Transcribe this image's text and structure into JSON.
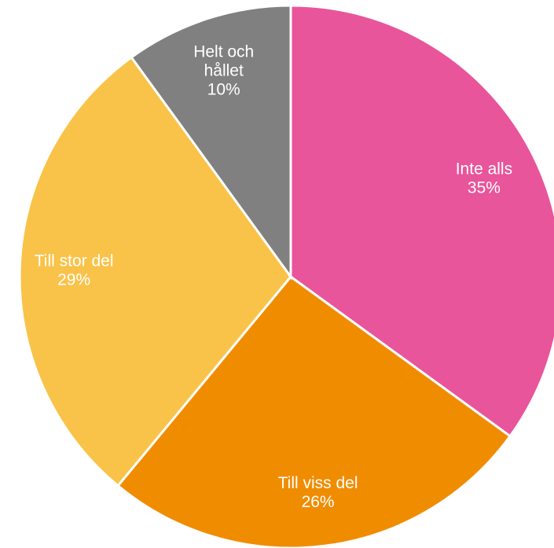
{
  "chart_data": {
    "type": "pie",
    "categories": [
      "Inte alls",
      "Till viss del",
      "Till stor del",
      "Helt och hållet"
    ],
    "values": [
      35,
      26,
      29,
      10
    ],
    "value_labels": [
      "35%",
      "26%",
      "29%",
      "10%"
    ],
    "colors": [
      "#e8559a",
      "#f08c00",
      "#f9c349",
      "#808080"
    ]
  }
}
